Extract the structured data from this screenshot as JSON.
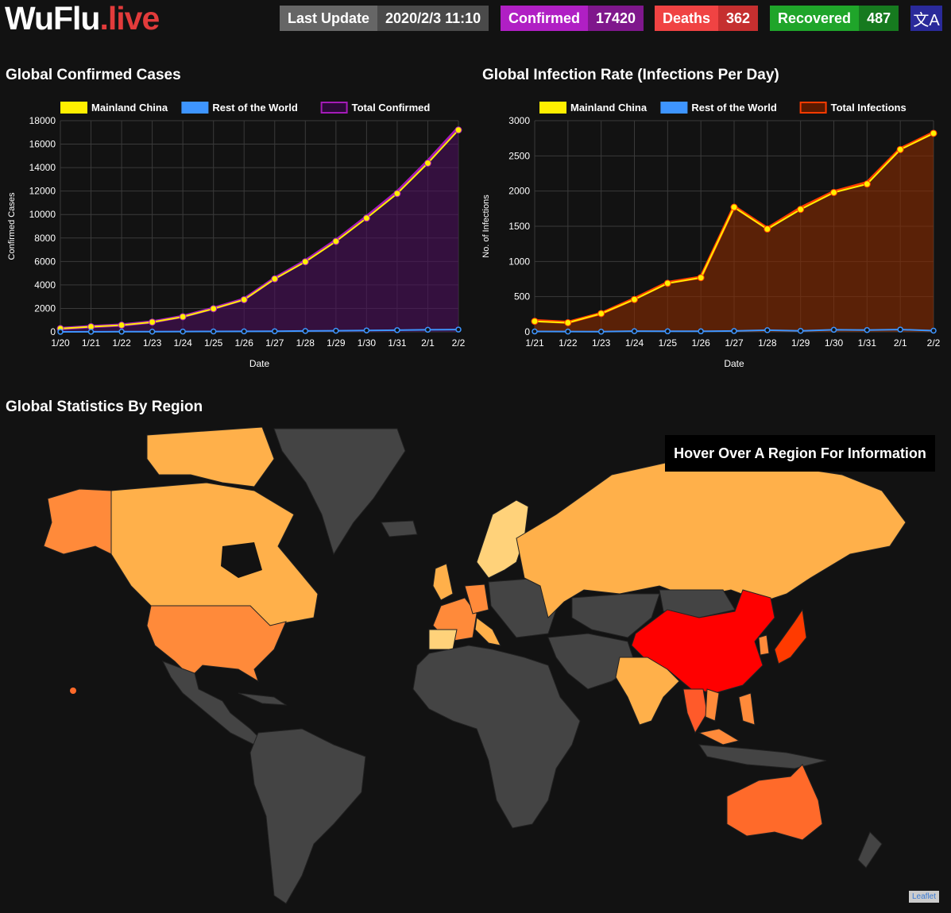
{
  "header": {
    "logo_main": "WuFlu",
    "logo_dot": ".",
    "logo_suffix": "live",
    "last_update_label": "Last Update",
    "last_update_value": "2020/2/3 11:10",
    "confirmed_label": "Confirmed",
    "confirmed_value": "17420",
    "deaths_label": "Deaths",
    "deaths_value": "362",
    "recovered_label": "Recovered",
    "recovered_value": "487",
    "language_icon": "translate-icon"
  },
  "colors": {
    "confirmed": "#b01fc4",
    "confirmed_dark": "#7f178c",
    "deaths": "#f04343",
    "deaths_dark": "#c52f2f",
    "recovered": "#1fa52a",
    "recovered_dark": "#167a1f",
    "mainland": "#ffef00",
    "rest": "#3e95ff",
    "total_confirmed": "#a51bb8",
    "total_infections": "#ff3b00"
  },
  "map": {
    "title": "Global Statistics By Region",
    "hover_info": "Hover Over A Region For Information",
    "attribution": "Leaflet"
  },
  "chart_data": [
    {
      "type": "line",
      "title": "Global Confirmed Cases",
      "xlabel": "Date",
      "ylabel": "Confirmed Cases",
      "ylim": [
        0,
        18000
      ],
      "yticks": [
        "0",
        "2000",
        "4000",
        "6000",
        "8000",
        "10000",
        "12000",
        "14000",
        "16000",
        "18000"
      ],
      "categories": [
        "1/20",
        "1/21",
        "1/22",
        "1/23",
        "1/24",
        "1/25",
        "1/26",
        "1/27",
        "1/28",
        "1/29",
        "1/30",
        "1/31",
        "2/1",
        "2/2"
      ],
      "legend": "top",
      "series": [
        {
          "name": "Mainland China",
          "values": [
            278,
            440,
            571,
            830,
            1287,
            1975,
            2744,
            4515,
            5974,
            7711,
            9692,
            11791,
            14380,
            17205
          ]
        },
        {
          "name": "Rest of the World",
          "values": [
            4,
            10,
            13,
            16,
            26,
            34,
            42,
            54,
            78,
            92,
            121,
            147,
            180,
            197
          ]
        },
        {
          "name": "Total Confirmed",
          "values": [
            282,
            450,
            584,
            846,
            1313,
            2009,
            2786,
            4569,
            6052,
            7803,
            9813,
            11938,
            14560,
            17402
          ]
        }
      ]
    },
    {
      "type": "line",
      "title": "Global Infection Rate (Infections Per Day)",
      "xlabel": "Date",
      "ylabel": "No. of Infections",
      "ylim": [
        0,
        3000
      ],
      "yticks": [
        "0",
        "500",
        "1000",
        "1500",
        "2000",
        "2500",
        "3000"
      ],
      "categories": [
        "1/21",
        "1/22",
        "1/23",
        "1/24",
        "1/25",
        "1/26",
        "1/27",
        "1/28",
        "1/29",
        "1/30",
        "1/31",
        "2/1",
        "2/2"
      ],
      "legend": "top",
      "series": [
        {
          "name": "Mainland China",
          "values": [
            150,
            130,
            260,
            460,
            690,
            770,
            1770,
            1460,
            1740,
            1980,
            2100,
            2590,
            2820
          ]
        },
        {
          "name": "Rest of the World",
          "values": [
            6,
            4,
            3,
            10,
            8,
            8,
            12,
            24,
            14,
            29,
            26,
            33,
            17
          ]
        },
        {
          "name": "Total Infections",
          "values": [
            160,
            135,
            262,
            470,
            700,
            775,
            1780,
            1470,
            1760,
            1990,
            2120,
            2600,
            2830
          ]
        }
      ]
    }
  ]
}
